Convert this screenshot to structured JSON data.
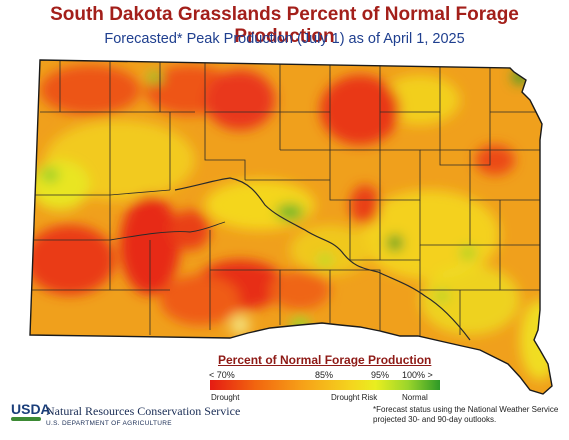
{
  "title": "South Dakota Grasslands Percent of Normal Forage Production",
  "subtitle": "Forecasted* Peak Production (July 1) as of April 1, 2025",
  "legend": {
    "title": "Percent of Normal Forage Production",
    "ticks": [
      "< 70%",
      "85%",
      "95%",
      "100% >"
    ],
    "categories": [
      "Drought",
      "Drought Risk",
      "Normal"
    ],
    "colors": {
      "drought": "#e51b13",
      "orange": "#f2660f",
      "amber": "#f6a018",
      "yellow": "#f4d61e",
      "lime": "#9bd52b",
      "normal": "#2e9a27"
    }
  },
  "agency": {
    "logo_text": "USDA",
    "name": "Natural Resources Conservation Service",
    "department": "U.S. DEPARTMENT OF AGRICULTURE"
  },
  "footnote": "*Forecast status using the National Weather Service projected 30- and 90-day outlooks.",
  "map": {
    "region": "South Dakota",
    "base_color": "#f0a01c",
    "county_line_color": "#2a2a2a"
  }
}
